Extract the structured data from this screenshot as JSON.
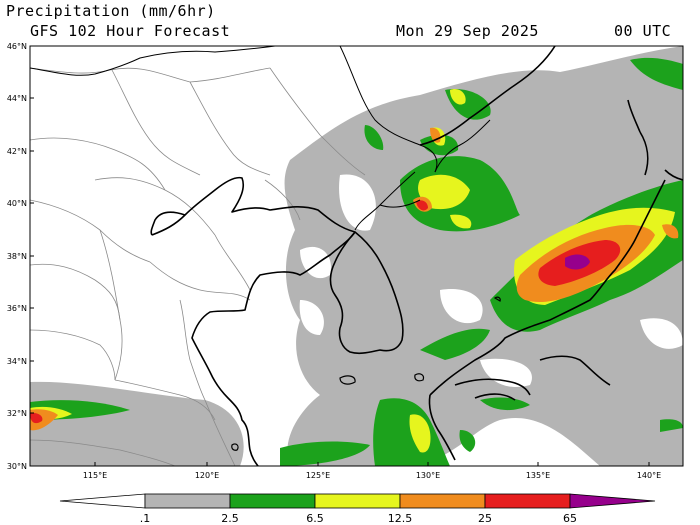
{
  "header": {
    "title": "Precipitation (mm/6hr)",
    "subtitle": "GFS 102 Hour Forecast",
    "date": "Mon 29 Sep 2025",
    "utc": "00 UTC"
  },
  "axes": {
    "lat_labels": [
      "46°N",
      "44°N",
      "42°N",
      "40°N",
      "38°N",
      "36°N",
      "34°N",
      "32°N",
      "30°N"
    ],
    "lon_labels": [
      "115°E",
      "120°E",
      "125°E",
      "130°E",
      "135°E",
      "140°E"
    ]
  },
  "colorbar": {
    "labels": [
      ".1",
      "2.5",
      "6.5",
      "12.5",
      "25",
      "65"
    ],
    "colors": [
      "#ffffff",
      "#b4b4b4",
      "#1ca21c",
      "#e6f51e",
      "#f08c1e",
      "#e61e1e",
      "#96008c"
    ]
  },
  "palette": {
    "gray": "#b4b4b4",
    "green": "#1ca21c",
    "yellow": "#e6f51e",
    "orange": "#f08c1e",
    "red": "#e61e1e",
    "purple": "#96008c"
  }
}
